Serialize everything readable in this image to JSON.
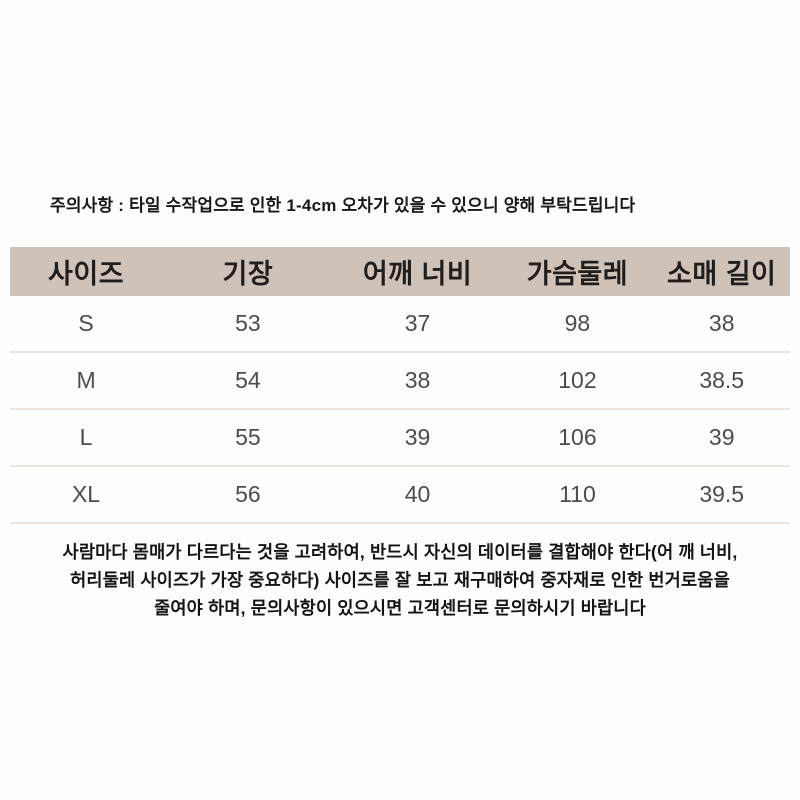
{
  "page": {
    "notice": "주의사항 : 타일 수작업으로 인한 1-4cm 오차가 있을 수 있으니 양해 부탁드립니다"
  },
  "size_table": {
    "headers": [
      "사이즈",
      "기장",
      "어깨 너비",
      "가슴둘레",
      "소매 길이"
    ],
    "rows": [
      [
        "S",
        "53",
        "37",
        "98",
        "38"
      ],
      [
        "M",
        "54",
        "38",
        "102",
        "38.5"
      ],
      [
        "L",
        "55",
        "39",
        "106",
        "39"
      ],
      [
        "XL",
        "56",
        "40",
        "110",
        "39.5"
      ]
    ]
  },
  "footnote": {
    "lines": [
      "사람마다 몸매가 다르다는 것을 고려하여, 반드시 자신의 데이터를 결합해야 한다(어 깨 너비,",
      "허리둘레 사이즈가 가장 중요하다) 사이즈를 잘 보고 재구매하여 중자재로  인한 번거로움을",
      "줄여야 하며, 문의사항이 있으시면 고객센터로 문의하시기 바랍니다"
    ]
  },
  "colors": {
    "header_bg": "#cfc3b9",
    "row_divider": "#ece4dc",
    "notice_text": "#181818",
    "value_text": "#4c4c4c"
  }
}
